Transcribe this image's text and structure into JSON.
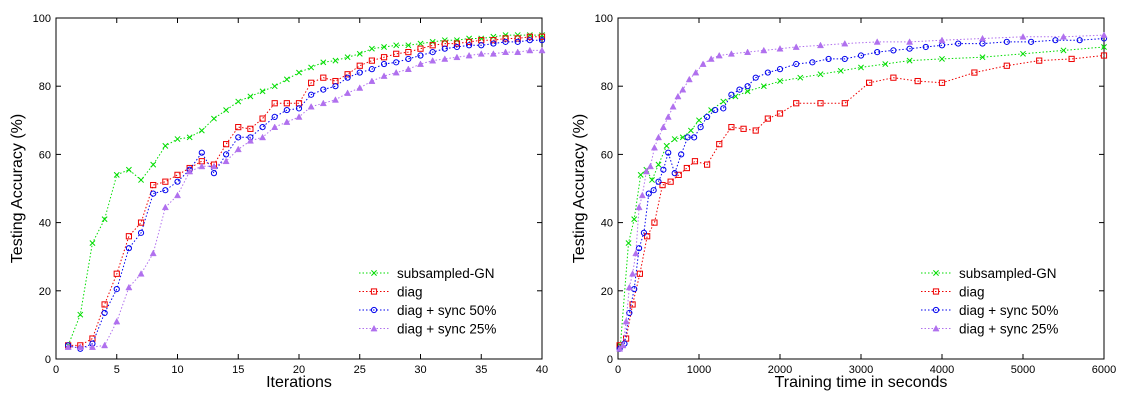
{
  "footer_fragment": "",
  "chart_data": [
    {
      "type": "line",
      "xlabel": "Iterations",
      "ylabel": "Testing Accuracy (%)",
      "xlim": [
        0,
        40
      ],
      "ylim": [
        0,
        100
      ],
      "xticks": [
        0,
        5,
        10,
        15,
        20,
        25,
        30,
        35,
        40
      ],
      "yticks": [
        0,
        20,
        40,
        60,
        80,
        100
      ],
      "grid": false,
      "legend_position": "bottom-right",
      "series": [
        {
          "name": "subsampled-GN",
          "color": "#00dd00",
          "marker": "x",
          "x": [
            1,
            2,
            3,
            4,
            5,
            6,
            7,
            8,
            9,
            10,
            11,
            12,
            13,
            14,
            15,
            16,
            17,
            18,
            19,
            20,
            21,
            22,
            23,
            24,
            25,
            26,
            27,
            28,
            29,
            30,
            31,
            32,
            33,
            34,
            35,
            36,
            37,
            38,
            39,
            40
          ],
          "y": [
            4,
            13,
            34,
            41,
            54,
            55.5,
            52.5,
            57,
            62.5,
            64.5,
            65,
            67,
            70.5,
            73,
            75.5,
            77,
            78.5,
            80,
            82,
            84,
            85.5,
            87,
            87.5,
            88.5,
            89.5,
            91,
            91.5,
            92,
            92,
            92.5,
            93,
            93.5,
            93.5,
            94,
            94,
            94.5,
            95,
            95,
            95,
            95
          ]
        },
        {
          "name": "diag",
          "color": "#ee0000",
          "marker": "square",
          "x": [
            1,
            2,
            3,
            4,
            5,
            6,
            7,
            8,
            9,
            10,
            11,
            12,
            13,
            14,
            15,
            16,
            17,
            18,
            19,
            20,
            21,
            22,
            23,
            24,
            25,
            26,
            27,
            28,
            29,
            30,
            31,
            32,
            33,
            34,
            35,
            36,
            37,
            38,
            39,
            40
          ],
          "y": [
            4,
            4,
            6,
            16,
            25,
            36,
            40,
            51,
            52,
            54,
            56,
            58,
            57,
            63,
            68,
            67.5,
            70.5,
            75,
            75,
            75,
            81,
            82.5,
            81.5,
            83.5,
            86,
            87.5,
            88.5,
            89.5,
            90,
            91,
            92,
            92.5,
            92.5,
            93,
            93.5,
            93.5,
            94,
            94,
            94.5,
            94.5
          ]
        },
        {
          "name": "diag + sync 50%",
          "color": "#0000ee",
          "marker": "circle",
          "x": [
            1,
            2,
            3,
            4,
            5,
            6,
            7,
            8,
            9,
            10,
            11,
            12,
            13,
            14,
            15,
            16,
            17,
            18,
            19,
            20,
            21,
            22,
            23,
            24,
            25,
            26,
            27,
            28,
            29,
            30,
            31,
            32,
            33,
            34,
            35,
            36,
            37,
            38,
            39,
            40
          ],
          "y": [
            4,
            3,
            4.5,
            13.5,
            20.5,
            32.5,
            37,
            48.5,
            49.5,
            52,
            55.5,
            60.5,
            54.5,
            60,
            65,
            65,
            68,
            71,
            73,
            73.5,
            77.5,
            79,
            80,
            82.5,
            84,
            85,
            86.5,
            87,
            88,
            89,
            90,
            91,
            91.5,
            92,
            92,
            92.5,
            93,
            93,
            93.5,
            93.5
          ]
        },
        {
          "name": "diag + sync 25%",
          "color": "#b070ee",
          "marker": "triangle",
          "x": [
            1,
            2,
            3,
            4,
            5,
            6,
            7,
            8,
            9,
            10,
            11,
            12,
            13,
            14,
            15,
            16,
            17,
            18,
            19,
            20,
            21,
            22,
            23,
            24,
            25,
            26,
            27,
            28,
            29,
            30,
            31,
            32,
            33,
            34,
            35,
            36,
            37,
            38,
            39,
            40
          ],
          "y": [
            3.5,
            3.5,
            3.5,
            4,
            11,
            21,
            25,
            31,
            44.5,
            48,
            55,
            56.5,
            56.5,
            58,
            61.5,
            64,
            65,
            68,
            69.5,
            71,
            74,
            75,
            76,
            78,
            79.5,
            81.5,
            83,
            84,
            85,
            86.5,
            87.5,
            88,
            88.5,
            89,
            89.5,
            89.5,
            90,
            90,
            90.5,
            90.5
          ]
        }
      ]
    },
    {
      "type": "line",
      "xlabel": "Training time in seconds",
      "ylabel": "Testing Accuracy (%)",
      "xlim": [
        0,
        6000
      ],
      "ylim": [
        0,
        100
      ],
      "xticks": [
        0,
        1000,
        2000,
        3000,
        4000,
        5000,
        6000
      ],
      "yticks": [
        0,
        20,
        40,
        60,
        80,
        100
      ],
      "grid": false,
      "legend_position": "bottom-right",
      "series": [
        {
          "name": "subsampled-GN",
          "color": "#00dd00",
          "marker": "x",
          "x": [
            30,
            130,
            200,
            280,
            350,
            420,
            500,
            600,
            700,
            800,
            900,
            1000,
            1150,
            1300,
            1450,
            1600,
            1800,
            2000,
            2250,
            2500,
            2750,
            3000,
            3300,
            3600,
            4000,
            4500,
            5000,
            5500,
            6000
          ],
          "y": [
            4,
            34,
            41,
            54,
            55.5,
            52.5,
            57,
            62.5,
            64.5,
            65,
            67,
            70,
            73,
            75.5,
            77,
            78.5,
            80,
            81.5,
            82.5,
            83.5,
            84.5,
            85.5,
            86.5,
            87.5,
            88,
            88.5,
            89.5,
            90.5,
            91.5
          ]
        },
        {
          "name": "diag",
          "color": "#ee0000",
          "marker": "square",
          "x": [
            20,
            100,
            180,
            270,
            360,
            450,
            550,
            650,
            750,
            850,
            950,
            1100,
            1250,
            1400,
            1550,
            1700,
            1850,
            2000,
            2200,
            2500,
            2800,
            3100,
            3400,
            3700,
            4000,
            4400,
            4800,
            5200,
            5600,
            6000
          ],
          "y": [
            4,
            6,
            16,
            25,
            36,
            40,
            51,
            52,
            54,
            56,
            58,
            57,
            63,
            68,
            67.5,
            67,
            70.5,
            72,
            75,
            75,
            75,
            81,
            82.5,
            81.5,
            81,
            84,
            86,
            87.5,
            88,
            89
          ]
        },
        {
          "name": "diag + sync 50%",
          "color": "#0000ee",
          "marker": "circle",
          "x": [
            20,
            80,
            140,
            200,
            260,
            320,
            380,
            440,
            500,
            560,
            620,
            700,
            780,
            860,
            940,
            1020,
            1100,
            1200,
            1300,
            1400,
            1500,
            1600,
            1700,
            1850,
            2000,
            2200,
            2400,
            2600,
            2800,
            3000,
            3200,
            3400,
            3600,
            3800,
            4000,
            4200,
            4500,
            4800,
            5100,
            5400,
            5700,
            6000
          ],
          "y": [
            3,
            4.5,
            13.5,
            20.5,
            32.5,
            37,
            48.5,
            49.5,
            52,
            55.5,
            60.5,
            54.5,
            60,
            65,
            65,
            68,
            71,
            73,
            73.5,
            77.5,
            79,
            80,
            82.5,
            84,
            85,
            86.5,
            87,
            88,
            88,
            89,
            90,
            90.5,
            91,
            91.5,
            92,
            92.5,
            92.5,
            93,
            93,
            93.5,
            93.5,
            94
          ]
        },
        {
          "name": "diag + sync 25%",
          "color": "#b070ee",
          "marker": "triangle",
          "x": [
            20,
            60,
            100,
            140,
            180,
            220,
            260,
            300,
            350,
            400,
            450,
            500,
            560,
            620,
            680,
            740,
            800,
            880,
            960,
            1050,
            1150,
            1250,
            1400,
            1600,
            1800,
            2000,
            2200,
            2500,
            2800,
            3200,
            3600,
            4000,
            4500,
            5000,
            5500,
            6000
          ],
          "y": [
            3,
            4,
            11,
            21,
            25,
            31,
            44.5,
            48,
            55,
            56.5,
            62,
            65,
            68,
            71,
            74,
            77,
            79,
            82,
            84,
            86.5,
            88,
            89,
            89.5,
            90,
            90.5,
            91,
            91.5,
            92,
            92.5,
            93,
            93,
            93.5,
            94,
            94.5,
            94.5,
            95
          ]
        }
      ]
    }
  ]
}
